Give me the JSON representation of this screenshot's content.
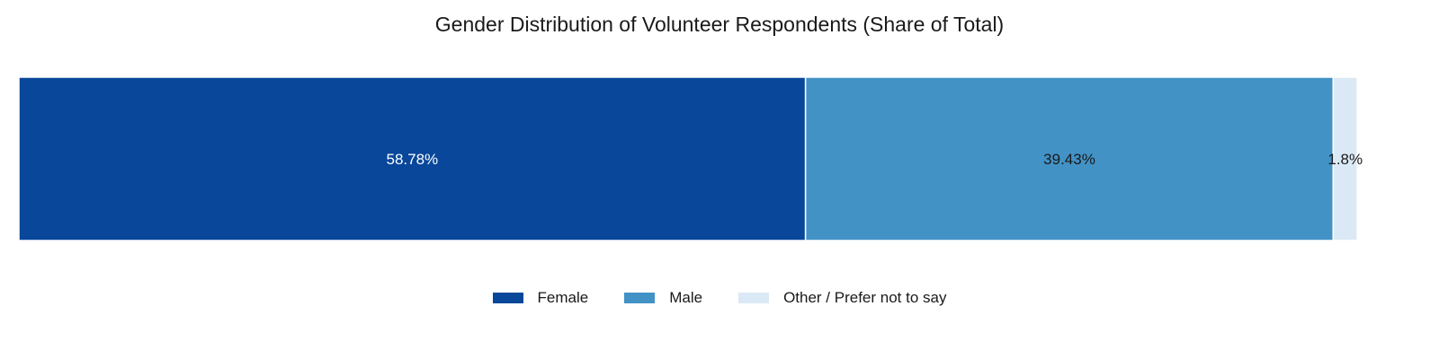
{
  "chart_data": {
    "type": "bar",
    "orientation": "horizontal-stacked",
    "title": "Gender Distribution of Volunteer Respondents (Share of Total)",
    "xlabel": "",
    "ylabel": "",
    "xlim": [
      0,
      100
    ],
    "grid": false,
    "legend_position": "bottom-center",
    "series": [
      {
        "name": "Female",
        "value": 58.78,
        "label": "58.78%",
        "color": "#08479a",
        "label_color": "#ffffff"
      },
      {
        "name": "Male",
        "value": 39.43,
        "label": "39.43%",
        "color": "#4292c6",
        "label_color": "#1a1a1a"
      },
      {
        "name": "Other / Prefer not to say",
        "value": 1.8,
        "label": "1.8%",
        "color": "#dbe9f6",
        "label_color": "#1a1a1a"
      }
    ]
  }
}
